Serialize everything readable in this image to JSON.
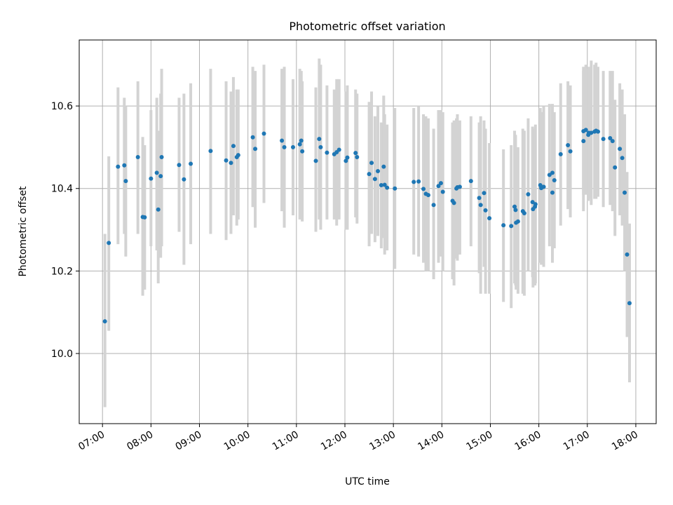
{
  "chart_data": {
    "type": "scatter",
    "title": "Photometric offset variation",
    "xlabel": "UTC time",
    "ylabel": "Photometric offset",
    "x_unit": "hours UTC",
    "x_ticks": [
      "07:00",
      "08:00",
      "09:00",
      "10:00",
      "11:00",
      "12:00",
      "13:00",
      "14:00",
      "15:00",
      "16:00",
      "17:00",
      "18:00"
    ],
    "y_ticks": [
      "10.0",
      "10.2",
      "10.4",
      "10.6"
    ],
    "xlim": [
      6.52,
      18.42
    ],
    "ylim": [
      9.83,
      10.76
    ],
    "grid": true,
    "colors": {
      "point": "#1f77b4",
      "errorbar": "#d3d3d3",
      "grid": "#b0b0b0",
      "axes": "#000000"
    },
    "series": [
      {
        "points": [
          [
            7.05,
            10.078,
            9.87,
            10.29
          ],
          [
            7.13,
            10.268,
            10.055,
            10.478
          ],
          [
            7.32,
            10.453,
            10.265,
            10.645
          ],
          [
            7.45,
            10.456,
            10.29,
            10.62
          ],
          [
            7.48,
            10.418,
            10.235,
            10.6
          ],
          [
            7.73,
            10.476,
            10.29,
            10.66
          ],
          [
            7.83,
            10.331,
            10.14,
            10.525
          ],
          [
            7.87,
            10.33,
            10.155,
            10.505
          ],
          [
            8.0,
            10.424,
            10.26,
            10.59
          ],
          [
            8.12,
            10.438,
            10.25,
            10.62
          ],
          [
            8.15,
            10.349,
            10.17,
            10.54
          ],
          [
            8.22,
            10.476,
            10.26,
            10.69
          ],
          [
            8.2,
            10.43,
            10.232,
            10.63
          ],
          [
            8.58,
            10.457,
            10.295,
            10.62
          ],
          [
            8.68,
            10.422,
            10.215,
            10.63
          ],
          [
            8.82,
            10.46,
            10.265,
            10.655
          ],
          [
            9.23,
            10.491,
            10.29,
            10.69
          ],
          [
            9.55,
            10.468,
            10.275,
            10.66
          ],
          [
            9.65,
            10.462,
            10.29,
            10.635
          ],
          [
            9.7,
            10.503,
            10.335,
            10.67
          ],
          [
            9.77,
            10.476,
            10.31,
            10.64
          ],
          [
            9.8,
            10.481,
            10.325,
            10.64
          ],
          [
            10.1,
            10.524,
            10.355,
            10.695
          ],
          [
            10.15,
            10.496,
            10.305,
            10.685
          ],
          [
            10.33,
            10.533,
            10.365,
            10.7
          ],
          [
            10.7,
            10.516,
            10.345,
            10.69
          ],
          [
            10.75,
            10.5,
            10.305,
            10.695
          ],
          [
            10.93,
            10.5,
            10.335,
            10.665
          ],
          [
            11.07,
            10.507,
            10.325,
            10.69
          ],
          [
            11.1,
            10.516,
            10.335,
            10.685
          ],
          [
            11.12,
            10.49,
            10.32,
            10.66
          ],
          [
            11.4,
            10.467,
            10.295,
            10.645
          ],
          [
            11.47,
            10.52,
            10.325,
            10.715
          ],
          [
            11.5,
            10.5,
            10.3,
            10.7
          ],
          [
            11.63,
            10.487,
            10.325,
            10.65
          ],
          [
            11.78,
            10.483,
            10.325,
            10.64
          ],
          [
            11.83,
            10.488,
            10.31,
            10.665
          ],
          [
            11.88,
            10.494,
            10.325,
            10.665
          ],
          [
            12.02,
            10.467,
            10.3,
            10.635
          ],
          [
            12.05,
            10.475,
            10.3,
            10.65
          ],
          [
            12.22,
            10.486,
            10.33,
            10.64
          ],
          [
            12.25,
            10.476,
            10.315,
            10.63
          ],
          [
            12.5,
            10.435,
            10.26,
            10.61
          ],
          [
            12.55,
            10.462,
            10.29,
            10.635
          ],
          [
            12.62,
            10.423,
            10.27,
            10.575
          ],
          [
            12.68,
            10.442,
            10.285,
            10.6
          ],
          [
            12.75,
            10.408,
            10.255,
            10.56
          ],
          [
            12.8,
            10.453,
            10.28,
            10.625
          ],
          [
            12.82,
            10.409,
            10.24,
            10.58
          ],
          [
            12.87,
            10.402,
            10.25,
            10.555
          ],
          [
            13.03,
            10.4,
            10.205,
            10.595
          ],
          [
            13.42,
            10.416,
            10.24,
            10.595
          ],
          [
            13.52,
            10.417,
            10.235,
            10.6
          ],
          [
            13.62,
            10.399,
            10.22,
            10.58
          ],
          [
            13.67,
            10.387,
            10.2,
            10.575
          ],
          [
            13.72,
            10.384,
            10.2,
            10.57
          ],
          [
            13.83,
            10.36,
            10.18,
            10.545
          ],
          [
            13.93,
            10.406,
            10.22,
            10.59
          ],
          [
            13.98,
            10.413,
            10.235,
            10.59
          ],
          [
            14.02,
            10.392,
            10.2,
            10.585
          ],
          [
            14.22,
            10.37,
            10.18,
            10.56
          ],
          [
            14.25,
            10.365,
            10.165,
            10.565
          ],
          [
            14.3,
            10.4,
            10.23,
            10.57
          ],
          [
            14.32,
            10.403,
            10.225,
            10.58
          ],
          [
            14.37,
            10.404,
            10.24,
            10.565
          ],
          [
            14.6,
            10.418,
            10.26,
            10.575
          ],
          [
            14.77,
            10.377,
            10.195,
            10.56
          ],
          [
            14.8,
            10.36,
            10.145,
            10.575
          ],
          [
            14.87,
            10.389,
            10.21,
            10.565
          ],
          [
            14.9,
            10.347,
            10.145,
            10.545
          ],
          [
            14.98,
            10.328,
            10.145,
            10.51
          ],
          [
            15.27,
            10.311,
            10.125,
            10.495
          ],
          [
            15.43,
            10.309,
            10.11,
            10.505
          ],
          [
            15.5,
            10.356,
            10.17,
            10.54
          ],
          [
            15.53,
            10.317,
            10.155,
            10.48
          ],
          [
            15.57,
            10.32,
            10.145,
            10.5
          ],
          [
            15.52,
            10.348,
            10.165,
            10.53
          ],
          [
            15.67,
            10.345,
            10.145,
            10.545
          ],
          [
            15.7,
            10.34,
            10.14,
            10.54
          ],
          [
            15.78,
            10.386,
            10.2,
            10.57
          ],
          [
            15.87,
            10.367,
            10.185,
            10.55
          ],
          [
            15.88,
            10.35,
            10.16,
            10.54
          ],
          [
            15.93,
            10.362,
            10.17,
            10.555
          ],
          [
            15.92,
            10.356,
            10.165,
            10.545
          ],
          [
            16.03,
            10.408,
            10.22,
            10.595
          ],
          [
            16.05,
            10.401,
            10.215,
            10.585
          ],
          [
            16.1,
            10.404,
            10.21,
            10.6
          ],
          [
            16.22,
            10.433,
            10.26,
            10.605
          ],
          [
            16.28,
            10.438,
            10.27,
            10.605
          ],
          [
            16.28,
            10.39,
            10.22,
            10.56
          ],
          [
            16.32,
            10.42,
            10.255,
            10.585
          ],
          [
            16.45,
            10.483,
            10.31,
            10.655
          ],
          [
            16.6,
            10.505,
            10.35,
            10.66
          ],
          [
            16.65,
            10.49,
            10.33,
            10.65
          ],
          [
            16.92,
            10.539,
            10.385,
            10.695
          ],
          [
            16.92,
            10.515,
            10.345,
            10.685
          ],
          [
            16.97,
            10.542,
            10.385,
            10.7
          ],
          [
            17.02,
            10.53,
            10.37,
            10.69
          ],
          [
            17.03,
            10.535,
            10.375,
            10.695
          ],
          [
            17.08,
            10.535,
            10.36,
            10.71
          ],
          [
            17.15,
            10.538,
            10.375,
            10.7
          ],
          [
            17.18,
            10.54,
            10.375,
            10.705
          ],
          [
            17.22,
            10.538,
            10.38,
            10.695
          ],
          [
            17.33,
            10.52,
            10.355,
            10.685
          ],
          [
            17.47,
            10.522,
            10.36,
            10.685
          ],
          [
            17.52,
            10.515,
            10.345,
            10.685
          ],
          [
            17.57,
            10.451,
            10.285,
            10.615
          ],
          [
            17.67,
            10.496,
            10.335,
            10.655
          ],
          [
            17.72,
            10.474,
            10.31,
            10.64
          ],
          [
            17.77,
            10.39,
            10.2,
            10.58
          ],
          [
            17.82,
            10.24,
            10.04,
            10.44
          ],
          [
            17.87,
            10.122,
            9.93,
            10.315
          ]
        ]
      }
    ]
  }
}
